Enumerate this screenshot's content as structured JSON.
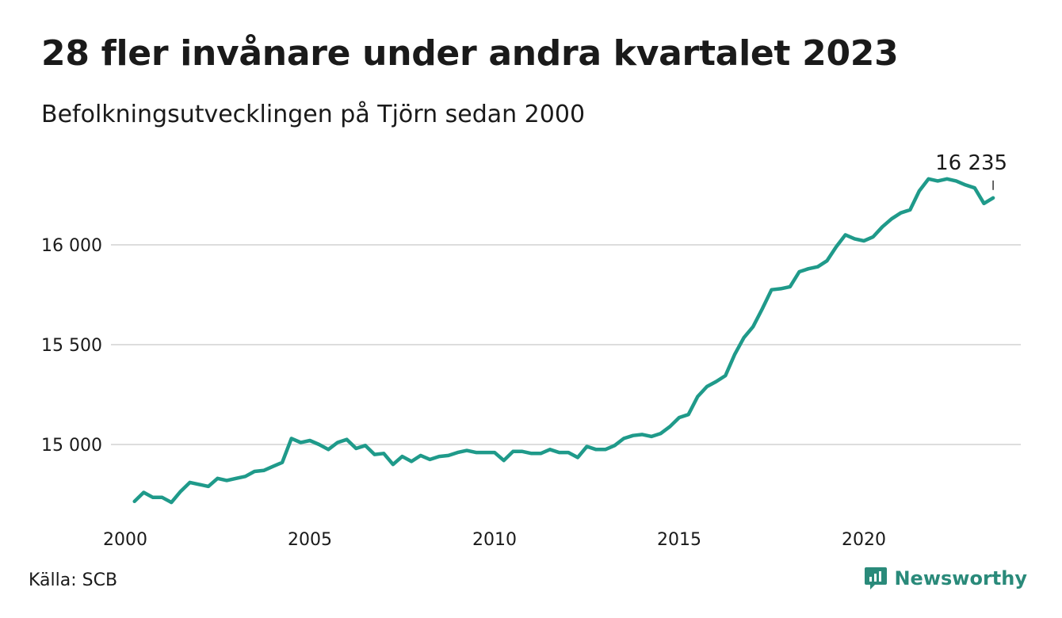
{
  "header": {
    "title": "28 fler invånare under andra kvartalet 2023",
    "subtitle": "Befolkningsutvecklingen på Tjörn sedan 2000"
  },
  "footer": {
    "source": "Källa: SCB",
    "brand": "Newsworthy",
    "brand_color": "#2a8a7a"
  },
  "colors": {
    "line": "#1f9a8a",
    "grid": "#dddddd",
    "text": "#1a1a1a"
  },
  "chart_data": {
    "type": "line",
    "title": "28 fler invånare under andra kvartalet 2023",
    "subtitle": "Befolkningsutvecklingen på Tjörn sedan 2000",
    "xlabel": "",
    "ylabel": "",
    "ylim": [
      14630,
      16350
    ],
    "xlim": [
      2000,
      2024
    ],
    "grid": "horizontal",
    "legend": "none",
    "y_ticks": [
      {
        "value": 15000,
        "label": "15 000"
      },
      {
        "value": 15500,
        "label": "15 500"
      },
      {
        "value": 16000,
        "label": "16 000"
      }
    ],
    "x_ticks": [
      {
        "value": 2000,
        "label": "2000"
      },
      {
        "value": 2005,
        "label": "2005"
      },
      {
        "value": 2010,
        "label": "2010"
      },
      {
        "value": 2015,
        "label": "2015"
      },
      {
        "value": 2020,
        "label": "2020"
      }
    ],
    "end_label": "16 235",
    "series": [
      {
        "values": [
          [
            2000.25,
            14715
          ],
          [
            2000.5,
            14760
          ],
          [
            2000.75,
            14735
          ],
          [
            2001.0,
            14735
          ],
          [
            2001.25,
            14710
          ],
          [
            2001.5,
            14765
          ],
          [
            2001.75,
            14810
          ],
          [
            2002.0,
            14800
          ],
          [
            2002.25,
            14790
          ],
          [
            2002.5,
            14830
          ],
          [
            2002.75,
            14820
          ],
          [
            2003.0,
            14830
          ],
          [
            2003.25,
            14840
          ],
          [
            2003.5,
            14865
          ],
          [
            2003.75,
            14870
          ],
          [
            2004.0,
            14890
          ],
          [
            2004.25,
            14910
          ],
          [
            2004.5,
            15030
          ],
          [
            2004.75,
            15010
          ],
          [
            2005.0,
            15020
          ],
          [
            2005.25,
            15000
          ],
          [
            2005.5,
            14975
          ],
          [
            2005.75,
            15010
          ],
          [
            2006.0,
            15025
          ],
          [
            2006.25,
            14980
          ],
          [
            2006.5,
            14995
          ],
          [
            2006.75,
            14950
          ],
          [
            2007.0,
            14955
          ],
          [
            2007.25,
            14900
          ],
          [
            2007.5,
            14940
          ],
          [
            2007.75,
            14915
          ],
          [
            2008.0,
            14945
          ],
          [
            2008.25,
            14925
          ],
          [
            2008.5,
            14940
          ],
          [
            2008.75,
            14945
          ],
          [
            2009.0,
            14960
          ],
          [
            2009.25,
            14970
          ],
          [
            2009.5,
            14960
          ],
          [
            2009.75,
            14960
          ],
          [
            2010.0,
            14960
          ],
          [
            2010.25,
            14920
          ],
          [
            2010.5,
            14965
          ],
          [
            2010.75,
            14965
          ],
          [
            2011.0,
            14955
          ],
          [
            2011.25,
            14955
          ],
          [
            2011.5,
            14975
          ],
          [
            2011.75,
            14960
          ],
          [
            2012.0,
            14960
          ],
          [
            2012.25,
            14935
          ],
          [
            2012.5,
            14990
          ],
          [
            2012.75,
            14975
          ],
          [
            2013.0,
            14975
          ],
          [
            2013.25,
            14995
          ],
          [
            2013.5,
            15030
          ],
          [
            2013.75,
            15045
          ],
          [
            2014.0,
            15050
          ],
          [
            2014.25,
            15040
          ],
          [
            2014.5,
            15055
          ],
          [
            2014.75,
            15090
          ],
          [
            2015.0,
            15135
          ],
          [
            2015.25,
            15150
          ],
          [
            2015.5,
            15240
          ],
          [
            2015.75,
            15290
          ],
          [
            2016.0,
            15315
          ],
          [
            2016.25,
            15345
          ],
          [
            2016.5,
            15450
          ],
          [
            2016.75,
            15535
          ],
          [
            2017.0,
            15590
          ],
          [
            2017.25,
            15680
          ],
          [
            2017.5,
            15775
          ],
          [
            2017.75,
            15780
          ],
          [
            2018.0,
            15790
          ],
          [
            2018.25,
            15865
          ],
          [
            2018.5,
            15880
          ],
          [
            2018.75,
            15890
          ],
          [
            2019.0,
            15920
          ],
          [
            2019.25,
            15990
          ],
          [
            2019.5,
            16050
          ],
          [
            2019.75,
            16030
          ],
          [
            2020.0,
            16020
          ],
          [
            2020.25,
            16040
          ],
          [
            2020.5,
            16090
          ],
          [
            2020.75,
            16130
          ],
          [
            2021.0,
            16160
          ],
          [
            2021.25,
            16175
          ],
          [
            2021.5,
            16270
          ],
          [
            2021.75,
            16330
          ],
          [
            2022.0,
            16320
          ],
          [
            2022.25,
            16330
          ],
          [
            2022.5,
            16320
          ],
          [
            2022.75,
            16300
          ],
          [
            2023.0,
            16285
          ],
          [
            2023.25,
            16207
          ],
          [
            2023.5,
            16235
          ]
        ]
      }
    ]
  }
}
